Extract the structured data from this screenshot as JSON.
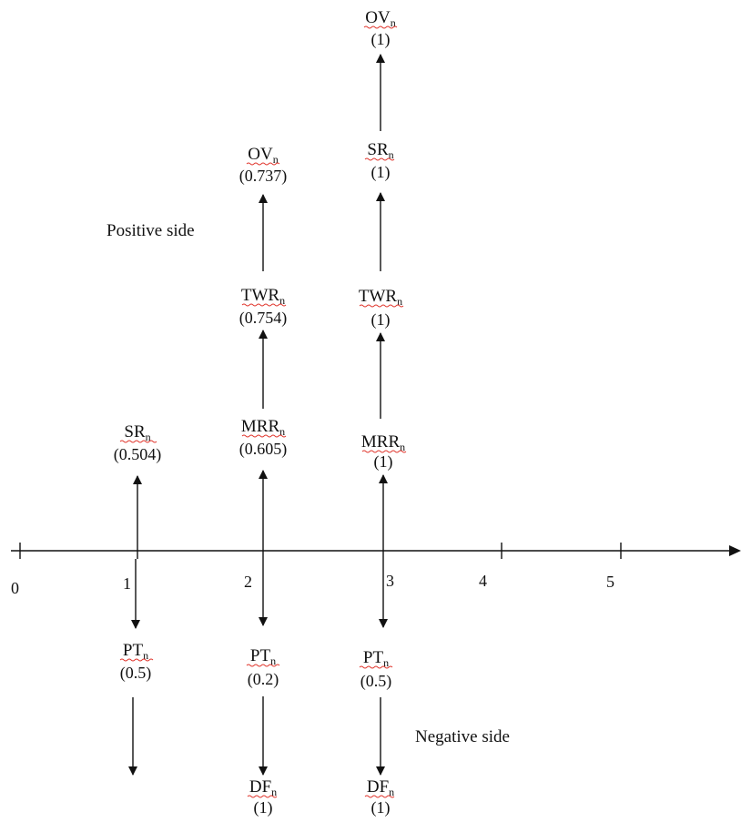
{
  "axis": {
    "ticks": [
      "0",
      "1",
      "2",
      "3",
      "4",
      "5"
    ]
  },
  "labels": {
    "positive_side": "Positive side",
    "negative_side": "Negative side"
  },
  "columns": [
    {
      "position": 1,
      "up": [
        {
          "base": "SR",
          "sub": "n",
          "value": "(0.504)"
        }
      ],
      "down": [
        {
          "base": "PT",
          "sub": "n",
          "value": "(0.5)"
        }
      ]
    },
    {
      "position": 2,
      "up": [
        {
          "base": "MRR",
          "sub": "n",
          "value": "(0.605)"
        },
        {
          "base": "TWR",
          "sub": "n",
          "value": "(0.754)"
        },
        {
          "base": "OV",
          "sub": "n",
          "value": "(0.737)"
        }
      ],
      "down": [
        {
          "base": "PT",
          "sub": "n",
          "value": "(0.2)"
        },
        {
          "base": "DF",
          "sub": "n",
          "value": "(1)"
        }
      ]
    },
    {
      "position": 3,
      "up": [
        {
          "base": "MRR",
          "sub": "n",
          "value": "(1)"
        },
        {
          "base": "TWR",
          "sub": "n",
          "value": "(1)"
        },
        {
          "base": "SR",
          "sub": "n",
          "value": "(1)"
        },
        {
          "base": "OV",
          "sub": "n",
          "value": "(1)"
        }
      ],
      "down": [
        {
          "base": "PT",
          "sub": "n",
          "value": "(0.5)"
        },
        {
          "base": "DF",
          "sub": "n",
          "value": "(1)"
        }
      ]
    }
  ]
}
